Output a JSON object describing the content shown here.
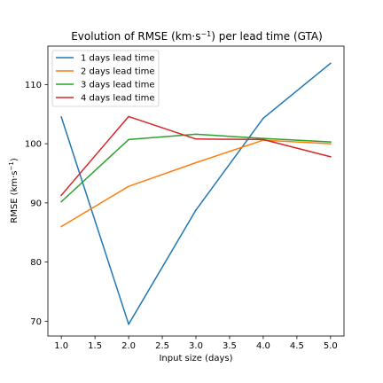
{
  "chart_data": {
    "type": "line",
    "title": "Evolution of RMSE (km·s",
    "title_sup": "−1",
    "title_tail": ") per lead time (GTA)",
    "xlabel": "Input size (days)",
    "ylabel": "RMSE (km·s",
    "ylabel_sup": "−1",
    "ylabel_tail": ")",
    "xlim": [
      0.8,
      5.2
    ],
    "ylim": [
      67.5,
      116.5
    ],
    "x_ticks": [
      1.0,
      1.5,
      2.0,
      2.5,
      3.0,
      3.5,
      4.0,
      4.5,
      5.0
    ],
    "x_tick_labels": [
      "1.0",
      "1.5",
      "2.0",
      "2.5",
      "3.0",
      "3.5",
      "4.0",
      "4.5",
      "5.0"
    ],
    "y_ticks": [
      70,
      80,
      90,
      100,
      110
    ],
    "y_tick_labels": [
      "70",
      "80",
      "90",
      "100",
      "110"
    ],
    "grid": false,
    "legend_position": "top-left",
    "x": [
      1,
      2,
      3,
      4,
      5
    ],
    "series": [
      {
        "name": "1 days lead time",
        "color": "#1f77b4",
        "values": [
          104.5,
          69.5,
          88.8,
          104.3,
          113.6
        ]
      },
      {
        "name": "2 days lead time",
        "color": "#ff7f0e",
        "values": [
          86.0,
          92.8,
          96.8,
          100.6,
          100.0
        ]
      },
      {
        "name": "3 days lead time",
        "color": "#2ca02c",
        "values": [
          90.2,
          100.7,
          101.6,
          100.9,
          100.3
        ]
      },
      {
        "name": "4 days lead time",
        "color": "#d62728",
        "values": [
          91.3,
          104.6,
          100.8,
          100.7,
          97.8
        ]
      }
    ]
  }
}
